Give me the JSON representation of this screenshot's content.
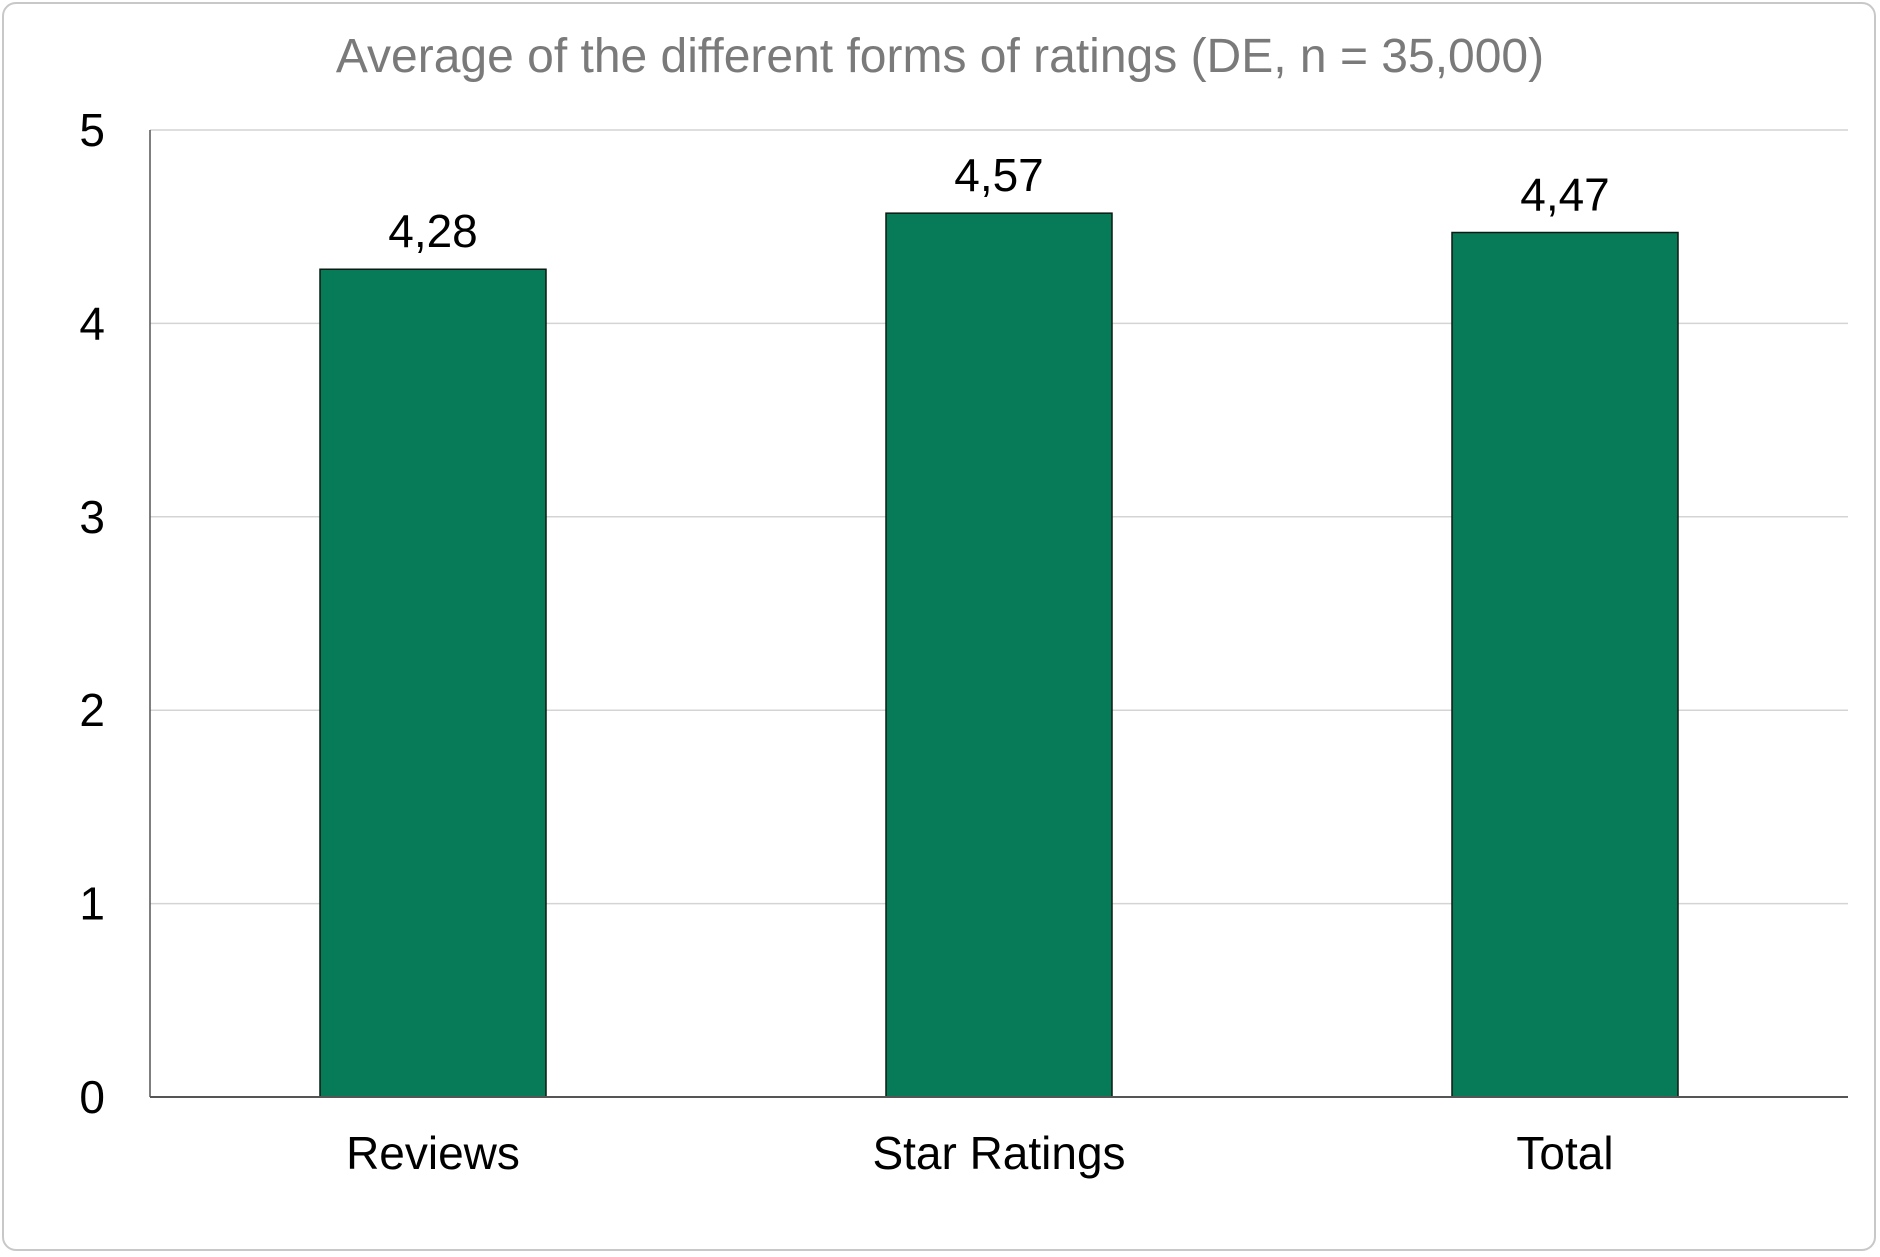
{
  "chart_data": {
    "type": "bar",
    "title": "Average of the different forms of ratings (DE, n = 35,000)",
    "xlabel": "",
    "ylabel": "",
    "categories": [
      "Reviews",
      "Star Ratings",
      "Total"
    ],
    "values": [
      4.28,
      4.57,
      4.47
    ],
    "value_labels": [
      "4,28",
      "4,57",
      "4,47"
    ],
    "ylim": [
      0,
      5
    ],
    "yticks": [
      0,
      1,
      2,
      3,
      4,
      5
    ],
    "ytick_labels": [
      "0",
      "1",
      "2",
      "3",
      "4",
      "5"
    ],
    "grid": true,
    "legend": "none",
    "colors": {
      "bar": "#077a57",
      "bar_edge": "#0b1a12",
      "grid": "#d4d4d4",
      "axis": "#555555",
      "title": "#7a7a7a"
    }
  }
}
